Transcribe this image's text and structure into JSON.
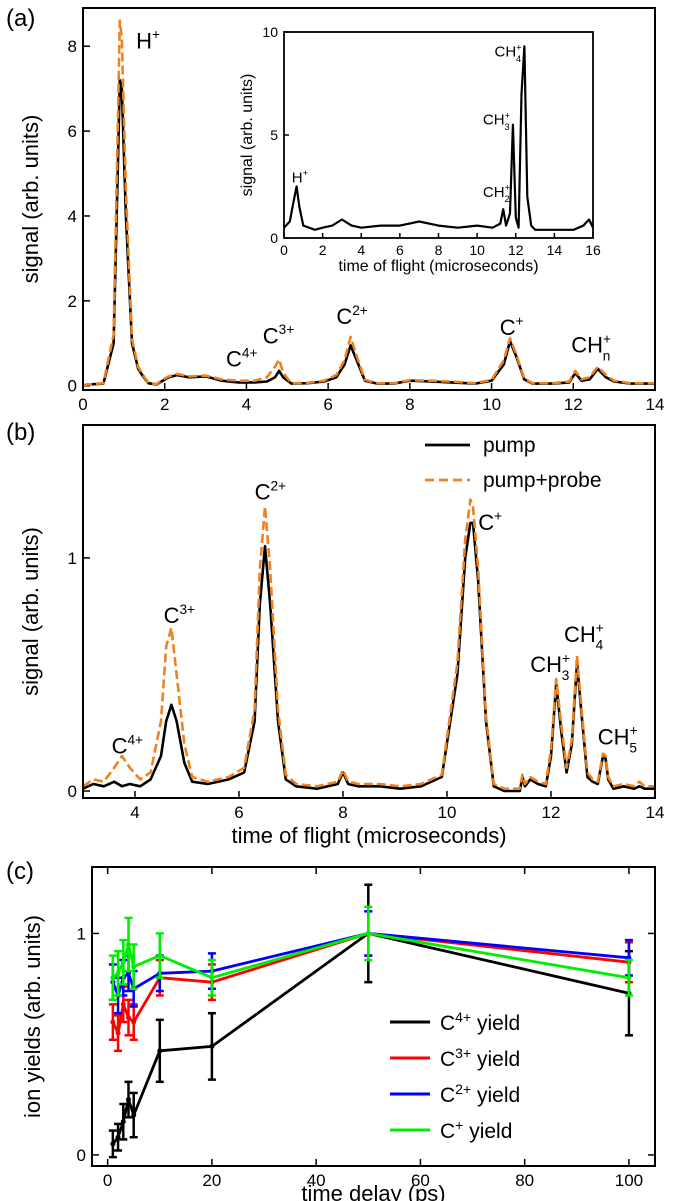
{
  "chart_data": [
    {
      "panel_label": "(a)",
      "type": "line",
      "xlabel": "",
      "ylabel": "signal (arb. units)",
      "xlim": [
        0,
        14
      ],
      "ylim": [
        -0.1,
        8.9
      ],
      "xticks": [
        0,
        2,
        4,
        6,
        8,
        10,
        12,
        14
      ],
      "yticks": [
        0,
        2,
        4,
        6,
        8
      ],
      "annotations": [
        {
          "base": "H",
          "sup": "+",
          "sub": "",
          "x": 1.3,
          "y": 7.95
        },
        {
          "base": "C",
          "sup": "4+",
          "sub": "",
          "x": 3.5,
          "y": 0.45
        },
        {
          "base": "C",
          "sup": "3+",
          "sub": "",
          "x": 4.4,
          "y": 1.0
        },
        {
          "base": "C",
          "sup": "2+",
          "sub": "",
          "x": 6.2,
          "y": 1.45
        },
        {
          "base": "C",
          "sup": "+",
          "sub": "",
          "x": 10.2,
          "y": 1.2
        },
        {
          "base": "CH",
          "sup": "+",
          "sub": "n",
          "x": 11.95,
          "y": 0.78
        }
      ],
      "series": [
        {
          "name": "pump",
          "color": "#000000",
          "dashed": false,
          "x": [
            0,
            0.5,
            0.75,
            0.85,
            0.9,
            0.95,
            1.05,
            1.2,
            1.35,
            1.45,
            1.6,
            1.8,
            1.95,
            2.1,
            2.3,
            2.6,
            3.0,
            3.4,
            3.8,
            4.2,
            4.5,
            4.7,
            4.8,
            4.9,
            5.1,
            5.5,
            5.9,
            6.2,
            6.4,
            6.55,
            6.7,
            6.9,
            7.2,
            7.6,
            8.0,
            8.5,
            9.0,
            9.6,
            10.0,
            10.3,
            10.45,
            10.6,
            10.8,
            11.0,
            11.5,
            11.9,
            12.05,
            12.2,
            12.4,
            12.6,
            12.8,
            13.0,
            13.4,
            14.0
          ],
          "y": [
            0.02,
            0.05,
            1.0,
            5.0,
            7.2,
            7.0,
            4.0,
            1.0,
            0.4,
            0.25,
            0.06,
            0.03,
            0.12,
            0.2,
            0.25,
            0.2,
            0.22,
            0.12,
            0.08,
            0.08,
            0.1,
            0.2,
            0.35,
            0.2,
            0.05,
            0.06,
            0.1,
            0.2,
            0.5,
            0.95,
            0.6,
            0.12,
            0.05,
            0.05,
            0.12,
            0.1,
            0.08,
            0.05,
            0.12,
            0.5,
            1.05,
            0.7,
            0.15,
            0.05,
            0.05,
            0.08,
            0.3,
            0.12,
            0.15,
            0.4,
            0.2,
            0.1,
            0.05,
            0.05
          ]
        },
        {
          "name": "pump+probe",
          "color": "#F0821E",
          "dashed": true,
          "x": [
            0,
            0.5,
            0.75,
            0.85,
            0.9,
            0.95,
            1.05,
            1.2,
            1.35,
            1.45,
            1.6,
            1.8,
            1.95,
            2.1,
            2.3,
            2.6,
            3.0,
            3.4,
            3.8,
            4.2,
            4.5,
            4.7,
            4.8,
            4.9,
            5.1,
            5.5,
            5.9,
            6.2,
            6.4,
            6.55,
            6.7,
            6.9,
            7.2,
            7.6,
            8.0,
            8.5,
            9.0,
            9.6,
            10.0,
            10.3,
            10.45,
            10.6,
            10.8,
            11.0,
            11.5,
            11.9,
            12.05,
            12.2,
            12.4,
            12.6,
            12.8,
            13.0,
            13.4,
            14.0
          ],
          "y": [
            0.02,
            0.06,
            1.2,
            6.0,
            8.6,
            8.2,
            4.6,
            1.1,
            0.45,
            0.28,
            0.07,
            0.04,
            0.15,
            0.22,
            0.28,
            0.22,
            0.24,
            0.15,
            0.12,
            0.12,
            0.2,
            0.45,
            0.62,
            0.3,
            0.06,
            0.07,
            0.12,
            0.25,
            0.6,
            1.15,
            0.7,
            0.14,
            0.06,
            0.06,
            0.13,
            0.12,
            0.1,
            0.06,
            0.14,
            0.6,
            1.12,
            0.75,
            0.17,
            0.06,
            0.06,
            0.1,
            0.35,
            0.15,
            0.2,
            0.45,
            0.25,
            0.12,
            0.06,
            0.06
          ]
        }
      ]
    },
    {
      "panel_label": "inset",
      "type": "line",
      "xlabel": "time of flight (microseconds)",
      "ylabel": "signal (arb. units)",
      "xlim": [
        0,
        16
      ],
      "ylim": [
        0,
        10
      ],
      "xticks": [
        0,
        2,
        4,
        6,
        8,
        10,
        12,
        14,
        16
      ],
      "yticks": [
        0,
        5,
        10
      ],
      "annotations": [
        {
          "base": "H",
          "sup": "+",
          "sub": "",
          "x": 0.4,
          "y": 2.7
        },
        {
          "base": "CH",
          "sup": "+",
          "sub": "2",
          "x": 10.3,
          "y": 2.0
        },
        {
          "base": "CH",
          "sup": "+",
          "sub": "3",
          "x": 10.3,
          "y": 5.5
        },
        {
          "base": "CH",
          "sup": "+",
          "sub": "4",
          "x": 10.9,
          "y": 8.8
        }
      ],
      "series": [
        {
          "name": "",
          "color": "#000000",
          "dashed": false,
          "x": [
            0,
            0.3,
            0.5,
            0.65,
            0.8,
            1.0,
            1.3,
            1.6,
            2.0,
            2.5,
            3.0,
            3.5,
            4.0,
            5.0,
            6.0,
            7.0,
            8.0,
            9.0,
            10.0,
            10.8,
            11.2,
            11.35,
            11.5,
            11.7,
            11.85,
            12.0,
            12.15,
            12.3,
            12.45,
            12.6,
            12.8,
            13.0,
            14.0,
            15.0,
            15.5,
            15.8,
            16.0
          ],
          "y": [
            0.5,
            0.8,
            1.8,
            2.5,
            1.5,
            0.6,
            0.5,
            0.4,
            0.5,
            0.6,
            0.9,
            0.6,
            0.5,
            0.6,
            0.6,
            0.8,
            0.6,
            0.5,
            0.6,
            0.5,
            0.7,
            1.4,
            0.6,
            1.2,
            5.5,
            1.0,
            0.5,
            7.0,
            9.3,
            2.0,
            0.6,
            0.4,
            0.4,
            0.4,
            0.6,
            0.9,
            0.5
          ]
        }
      ]
    },
    {
      "panel_label": "(b)",
      "type": "line",
      "xlabel": "time of flight (microseconds)",
      "ylabel": "signal (arb. units)",
      "xlim": [
        3,
        14
      ],
      "ylim": [
        -0.03,
        1.57
      ],
      "xticks": [
        4,
        6,
        8,
        10,
        12,
        14
      ],
      "yticks": [
        0,
        1
      ],
      "legend": {
        "position": "top-right",
        "entries": [
          "pump",
          "pump+probe"
        ]
      },
      "annotations": [
        {
          "base": "C",
          "sup": "4+",
          "sub": "",
          "x": 3.55,
          "y": 0.16
        },
        {
          "base": "C",
          "sup": "3+",
          "sub": "",
          "x": 4.55,
          "y": 0.72
        },
        {
          "base": "C",
          "sup": "2+",
          "sub": "",
          "x": 6.3,
          "y": 1.25
        },
        {
          "base": "C",
          "sup": "+",
          "sub": "",
          "x": 10.6,
          "y": 1.12
        },
        {
          "base": "CH",
          "sup": "+",
          "sub": "3",
          "x": 11.6,
          "y": 0.51
        },
        {
          "base": "CH",
          "sup": "+",
          "sub": "4",
          "x": 12.25,
          "y": 0.64
        },
        {
          "base": "CH",
          "sup": "+",
          "sub": "5",
          "x": 12.9,
          "y": 0.2
        }
      ],
      "series": [
        {
          "name": "pump",
          "color": "#000000",
          "dashed": false,
          "x": [
            3.0,
            3.2,
            3.4,
            3.6,
            3.75,
            3.9,
            4.1,
            4.3,
            4.5,
            4.6,
            4.7,
            4.8,
            4.95,
            5.1,
            5.4,
            5.8,
            6.1,
            6.3,
            6.4,
            6.5,
            6.6,
            6.75,
            6.9,
            7.1,
            7.5,
            7.9,
            8.0,
            8.1,
            8.3,
            8.7,
            9.1,
            9.5,
            9.9,
            10.2,
            10.35,
            10.45,
            10.5,
            10.6,
            10.75,
            10.9,
            11.1,
            11.4,
            11.45,
            11.5,
            11.6,
            11.75,
            11.9,
            12.0,
            12.1,
            12.2,
            12.3,
            12.4,
            12.5,
            12.6,
            12.7,
            12.8,
            12.9,
            13.0,
            13.05,
            13.1,
            13.2,
            13.4,
            13.6,
            13.7,
            13.8,
            14.0
          ],
          "y": [
            0.01,
            0.03,
            0.02,
            0.04,
            0.02,
            0.03,
            0.02,
            0.05,
            0.15,
            0.3,
            0.37,
            0.3,
            0.12,
            0.04,
            0.03,
            0.05,
            0.08,
            0.3,
            0.8,
            1.05,
            0.8,
            0.3,
            0.05,
            0.02,
            0.01,
            0.03,
            0.08,
            0.03,
            0.02,
            0.02,
            0.01,
            0.02,
            0.06,
            0.5,
            1.0,
            1.15,
            1.15,
            0.9,
            0.3,
            0.02,
            0.0,
            0.0,
            0.06,
            0.02,
            0.05,
            0.03,
            0.02,
            0.15,
            0.46,
            0.25,
            0.08,
            0.2,
            0.55,
            0.3,
            0.06,
            0.04,
            0.03,
            0.15,
            0.14,
            0.05,
            0.01,
            0.02,
            0.01,
            0.02,
            0.01,
            0.01
          ]
        },
        {
          "name": "pump+probe",
          "color": "#F0821E",
          "dashed": true,
          "x": [
            3.0,
            3.2,
            3.4,
            3.6,
            3.75,
            3.9,
            4.1,
            4.3,
            4.5,
            4.6,
            4.7,
            4.8,
            4.95,
            5.1,
            5.4,
            5.8,
            6.1,
            6.3,
            6.4,
            6.5,
            6.6,
            6.75,
            6.9,
            7.1,
            7.5,
            7.9,
            8.0,
            8.1,
            8.3,
            8.7,
            9.1,
            9.5,
            9.9,
            10.2,
            10.35,
            10.45,
            10.5,
            10.6,
            10.75,
            10.9,
            11.1,
            11.4,
            11.45,
            11.5,
            11.6,
            11.75,
            11.9,
            12.0,
            12.1,
            12.2,
            12.3,
            12.4,
            12.5,
            12.6,
            12.7,
            12.8,
            12.9,
            13.0,
            13.05,
            13.1,
            13.2,
            13.4,
            13.6,
            13.7,
            13.8,
            14.0
          ],
          "y": [
            0.02,
            0.05,
            0.04,
            0.1,
            0.15,
            0.1,
            0.05,
            0.08,
            0.3,
            0.62,
            0.7,
            0.5,
            0.2,
            0.06,
            0.04,
            0.06,
            0.1,
            0.35,
            0.95,
            1.22,
            0.95,
            0.35,
            0.07,
            0.03,
            0.02,
            0.04,
            0.09,
            0.04,
            0.03,
            0.03,
            0.02,
            0.03,
            0.07,
            0.55,
            1.08,
            1.25,
            1.22,
            0.95,
            0.32,
            0.03,
            0.01,
            0.01,
            0.07,
            0.03,
            0.06,
            0.04,
            0.03,
            0.18,
            0.48,
            0.28,
            0.1,
            0.22,
            0.58,
            0.32,
            0.08,
            0.05,
            0.04,
            0.16,
            0.15,
            0.06,
            0.02,
            0.03,
            0.02,
            0.04,
            0.02,
            0.02
          ]
        }
      ]
    },
    {
      "panel_label": "(c)",
      "type": "line",
      "xlabel": "time delay (ps)",
      "ylabel": "ion yields (arb. units)",
      "xlim": [
        -3,
        105
      ],
      "ylim": [
        -0.05,
        1.3
      ],
      "xticks": [
        0,
        20,
        40,
        60,
        80,
        100
      ],
      "yticks": [
        0,
        1
      ],
      "legend": {
        "position": "lower-right",
        "entries": [
          "C4+ yield",
          "C3+ yield",
          "C2+ yield",
          "C+ yield"
        ]
      },
      "series": [
        {
          "name": "C4+ yield",
          "label_base": "C",
          "label_sup": "4+",
          "label_rest": " yield",
          "color": "#000000",
          "x": [
            1,
            2,
            3,
            4,
            5,
            10,
            20,
            50,
            100
          ],
          "y": [
            0.05,
            0.08,
            0.15,
            0.25,
            0.18,
            0.47,
            0.49,
            1.0,
            0.73
          ],
          "err": [
            0.06,
            0.06,
            0.08,
            0.08,
            0.1,
            0.14,
            0.15,
            0.22,
            0.19
          ]
        },
        {
          "name": "C3+ yield",
          "label_base": "C",
          "label_sup": "3+",
          "label_rest": " yield",
          "color": "#FF0000",
          "x": [
            1,
            2,
            3,
            4,
            5,
            10,
            20,
            50,
            100
          ],
          "y": [
            0.6,
            0.55,
            0.68,
            0.62,
            0.6,
            0.8,
            0.78,
            1.0,
            0.87
          ],
          "err": [
            0.08,
            0.08,
            0.08,
            0.08,
            0.08,
            0.08,
            0.08,
            0.1,
            0.09
          ]
        },
        {
          "name": "C2+ yield",
          "label_base": "C",
          "label_sup": "2+",
          "label_rest": " yield",
          "color": "#0000FF",
          "x": [
            1,
            2,
            3,
            4,
            5,
            10,
            20,
            50,
            100
          ],
          "y": [
            0.78,
            0.72,
            0.8,
            0.82,
            0.75,
            0.82,
            0.83,
            1.0,
            0.89
          ],
          "err": [
            0.08,
            0.08,
            0.08,
            0.08,
            0.08,
            0.08,
            0.08,
            0.1,
            0.08
          ]
        },
        {
          "name": "C+ yield",
          "label_base": "C",
          "label_sup": "+",
          "label_rest": " yield",
          "color": "#00EE00",
          "x": [
            1,
            2,
            3,
            4,
            5,
            10,
            20,
            50,
            100
          ],
          "y": [
            0.8,
            0.82,
            0.87,
            0.95,
            0.85,
            0.9,
            0.8,
            1.0,
            0.8
          ],
          "err": [
            0.1,
            0.1,
            0.1,
            0.12,
            0.1,
            0.1,
            0.08,
            0.12,
            0.08
          ]
        }
      ]
    }
  ]
}
